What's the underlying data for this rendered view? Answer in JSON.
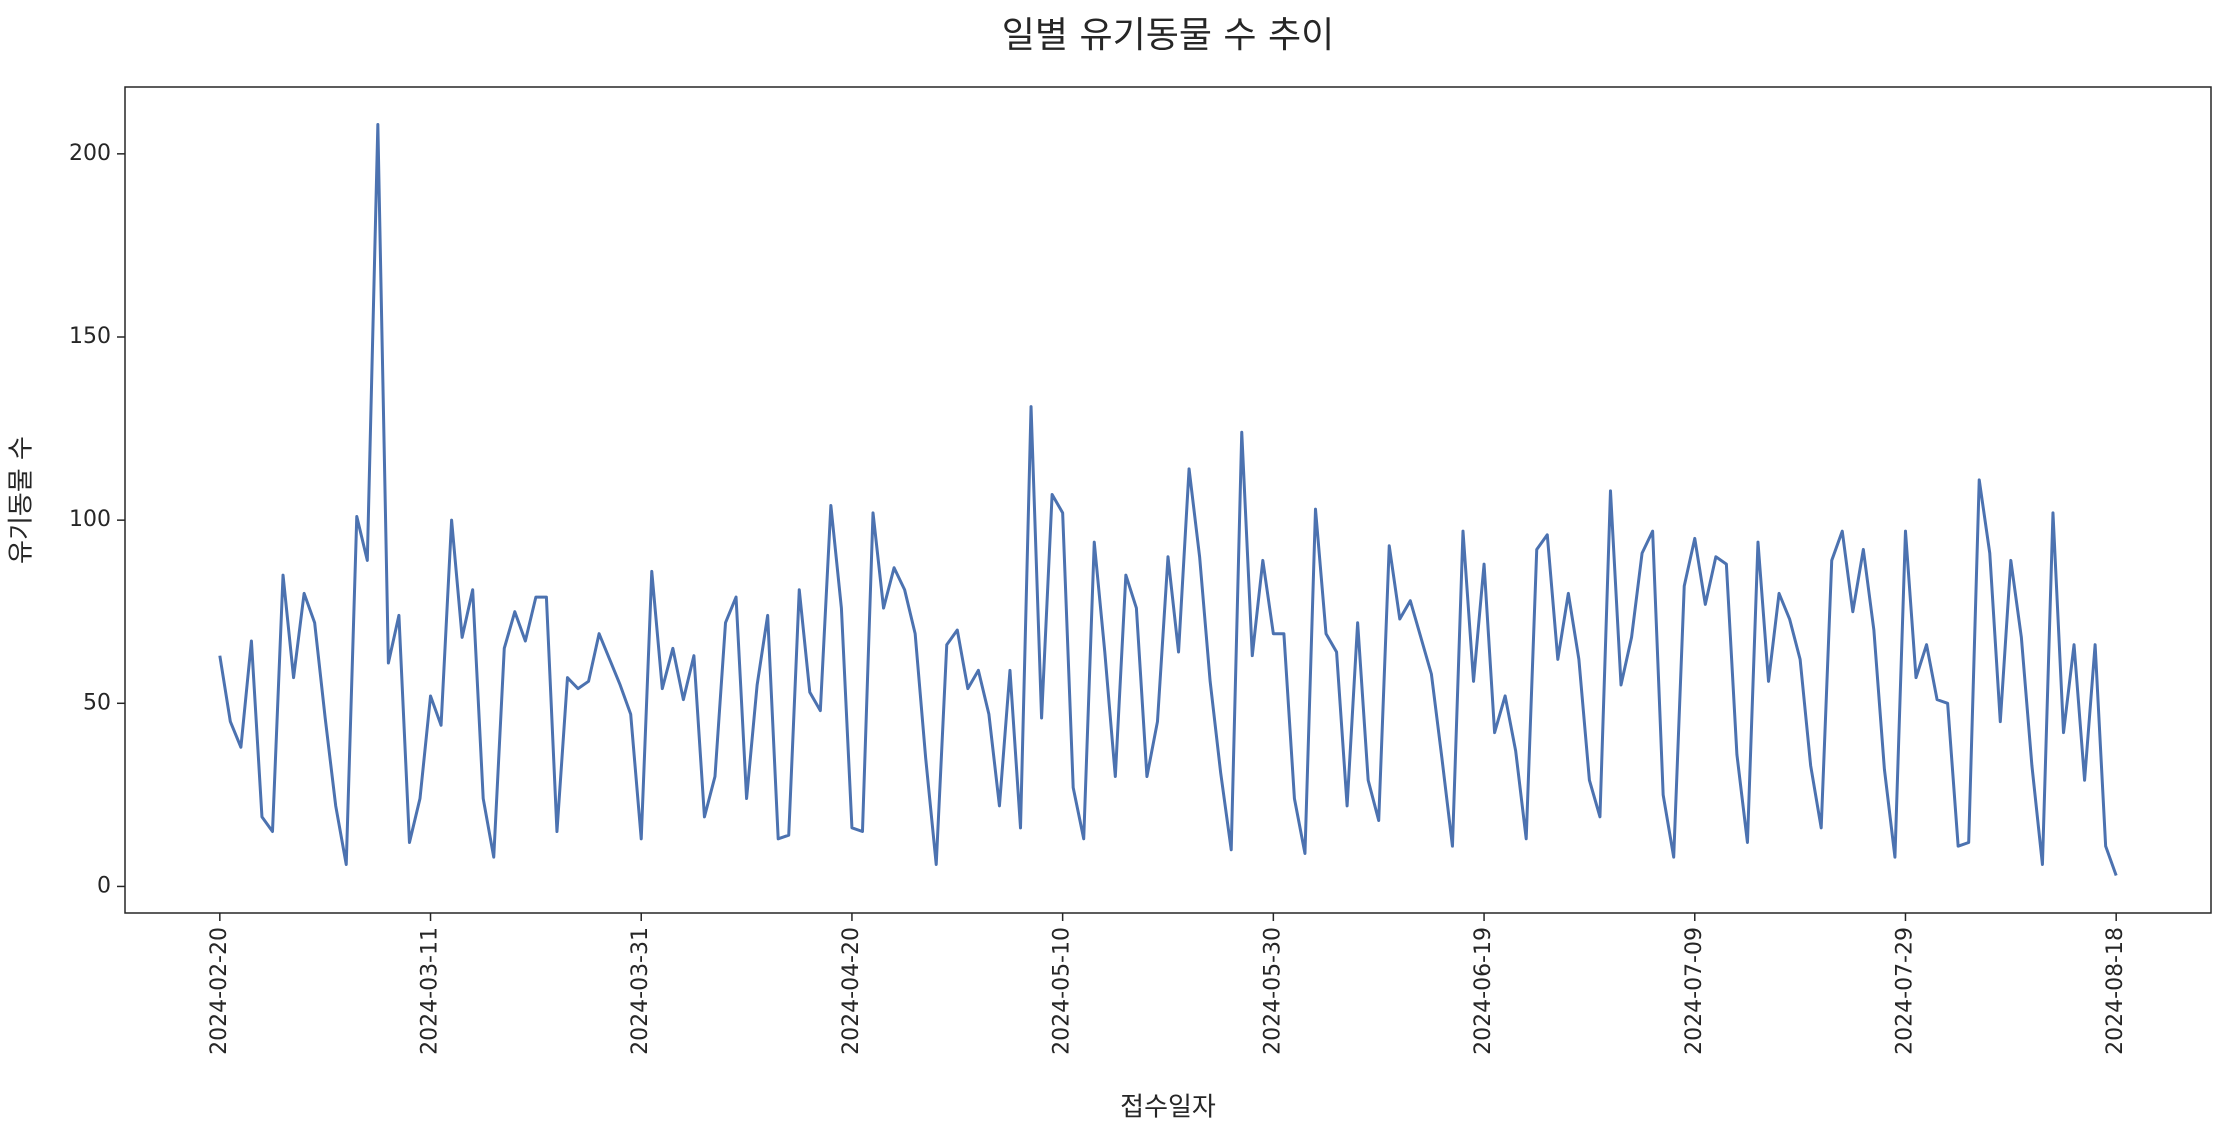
{
  "chart_data": {
    "type": "line",
    "title": "일별 유기동물 수 추이",
    "xlabel": "접수일자",
    "ylabel": "유기동물 수",
    "color": "#4c72b0",
    "x": [
      "2024-02-20",
      "2024-02-21",
      "2024-02-22",
      "2024-02-23",
      "2024-02-24",
      "2024-02-25",
      "2024-02-26",
      "2024-02-27",
      "2024-02-28",
      "2024-02-29",
      "2024-03-01",
      "2024-03-02",
      "2024-03-03",
      "2024-03-04",
      "2024-03-05",
      "2024-03-06",
      "2024-03-07",
      "2024-03-08",
      "2024-03-09",
      "2024-03-10",
      "2024-03-11",
      "2024-03-12",
      "2024-03-13",
      "2024-03-14",
      "2024-03-15",
      "2024-03-16",
      "2024-03-17",
      "2024-03-18",
      "2024-03-19",
      "2024-03-20",
      "2024-03-21",
      "2024-03-22",
      "2024-03-23",
      "2024-03-24",
      "2024-03-25",
      "2024-03-26",
      "2024-03-27",
      "2024-03-28",
      "2024-03-29",
      "2024-03-30",
      "2024-03-31",
      "2024-04-01",
      "2024-04-02",
      "2024-04-03",
      "2024-04-04",
      "2024-04-05",
      "2024-04-06",
      "2024-04-07",
      "2024-04-08",
      "2024-04-09",
      "2024-04-10",
      "2024-04-11",
      "2024-04-12",
      "2024-04-13",
      "2024-04-14",
      "2024-04-15",
      "2024-04-16",
      "2024-04-17",
      "2024-04-18",
      "2024-04-19",
      "2024-04-20",
      "2024-04-21",
      "2024-04-22",
      "2024-04-23",
      "2024-04-24",
      "2024-04-25",
      "2024-04-26",
      "2024-04-27",
      "2024-04-28",
      "2024-04-29",
      "2024-04-30",
      "2024-05-01",
      "2024-05-02",
      "2024-05-03",
      "2024-05-04",
      "2024-05-05",
      "2024-05-06",
      "2024-05-07",
      "2024-05-08",
      "2024-05-09",
      "2024-05-10",
      "2024-05-11",
      "2024-05-12",
      "2024-05-13",
      "2024-05-14",
      "2024-05-15",
      "2024-05-16",
      "2024-05-17",
      "2024-05-18",
      "2024-05-19",
      "2024-05-20",
      "2024-05-21",
      "2024-05-22",
      "2024-05-23",
      "2024-05-24",
      "2024-05-25",
      "2024-05-26",
      "2024-05-27",
      "2024-05-28",
      "2024-05-29",
      "2024-05-30",
      "2024-05-31",
      "2024-06-01",
      "2024-06-02",
      "2024-06-03",
      "2024-06-04",
      "2024-06-05",
      "2024-06-06",
      "2024-06-07",
      "2024-06-08",
      "2024-06-09",
      "2024-06-10",
      "2024-06-11",
      "2024-06-12",
      "2024-06-13",
      "2024-06-14",
      "2024-06-15",
      "2024-06-16",
      "2024-06-17",
      "2024-06-18",
      "2024-06-19",
      "2024-06-20",
      "2024-06-21",
      "2024-06-22",
      "2024-06-23",
      "2024-06-24",
      "2024-06-25",
      "2024-06-26",
      "2024-06-27",
      "2024-06-28",
      "2024-06-29",
      "2024-06-30",
      "2024-07-01",
      "2024-07-02",
      "2024-07-03",
      "2024-07-04",
      "2024-07-05",
      "2024-07-06",
      "2024-07-07",
      "2024-07-08",
      "2024-07-09",
      "2024-07-10",
      "2024-07-11",
      "2024-07-12",
      "2024-07-13",
      "2024-07-14",
      "2024-07-15",
      "2024-07-16",
      "2024-07-17",
      "2024-07-18",
      "2024-07-19",
      "2024-07-20",
      "2024-07-21",
      "2024-07-22",
      "2024-07-23",
      "2024-07-24",
      "2024-07-25",
      "2024-07-26",
      "2024-07-27",
      "2024-07-28",
      "2024-07-29",
      "2024-07-30",
      "2024-07-31",
      "2024-08-01",
      "2024-08-02",
      "2024-08-03",
      "2024-08-04",
      "2024-08-05",
      "2024-08-06",
      "2024-08-07",
      "2024-08-08",
      "2024-08-09",
      "2024-08-10",
      "2024-08-11",
      "2024-08-12",
      "2024-08-13",
      "2024-08-14",
      "2024-08-15",
      "2024-08-16",
      "2024-08-17",
      "2024-08-18"
    ],
    "values": [
      63,
      45,
      38,
      67,
      19,
      15,
      85,
      57,
      80,
      72,
      46,
      22,
      6,
      101,
      89,
      208,
      61,
      74,
      12,
      24,
      52,
      44,
      100,
      68,
      81,
      24,
      8,
      65,
      75,
      67,
      79,
      79,
      15,
      57,
      54,
      56,
      69,
      62,
      55,
      47,
      13,
      86,
      54,
      65,
      51,
      63,
      19,
      30,
      72,
      79,
      24,
      55,
      74,
      13,
      14,
      81,
      53,
      48,
      104,
      76,
      16,
      15,
      102,
      76,
      87,
      81,
      69,
      35,
      6,
      66,
      70,
      54,
      59,
      47,
      22,
      59,
      16,
      131,
      46,
      107,
      102,
      27,
      13,
      94,
      64,
      30,
      85,
      76,
      30,
      45,
      90,
      64,
      114,
      90,
      56,
      31,
      10,
      124,
      63,
      89,
      69,
      69,
      24,
      9,
      103,
      69,
      64,
      22,
      72,
      29,
      18,
      93,
      73,
      78,
      68,
      58,
      35,
      11,
      97,
      56,
      88,
      42,
      52,
      37,
      13,
      92,
      96,
      62,
      80,
      62,
      29,
      19,
      108,
      55,
      68,
      91,
      97,
      25,
      8,
      82,
      95,
      77,
      90,
      88,
      36,
      12,
      94,
      56,
      80,
      73,
      62,
      33,
      16,
      89,
      97,
      75,
      92,
      70,
      32,
      8,
      97,
      57,
      66,
      51,
      50,
      11,
      12,
      111,
      91,
      45,
      89,
      68,
      33,
      6,
      102,
      42,
      66,
      29,
      66,
      11,
      3
    ],
    "xlim": [
      "2024-02-11",
      "2024-08-27"
    ],
    "xticks": [
      "2024-02-20",
      "2024-03-11",
      "2024-03-31",
      "2024-04-20",
      "2024-05-10",
      "2024-05-30",
      "2024-06-19",
      "2024-07-09",
      "2024-07-29",
      "2024-08-18"
    ],
    "ylim": [
      -7.25,
      218.25
    ],
    "yticks": [
      0,
      50,
      100,
      150,
      200
    ]
  }
}
